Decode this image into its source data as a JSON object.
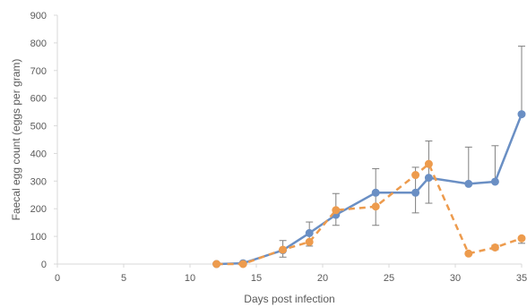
{
  "chart_data": {
    "type": "line",
    "title": "",
    "xlabel": "Days post infection",
    "ylabel": "Faecal egg count (eggs per gram)",
    "xlim": [
      0,
      35
    ],
    "ylim": [
      0,
      900
    ],
    "x_ticks": [
      0,
      5,
      10,
      15,
      20,
      25,
      30,
      35
    ],
    "y_ticks": [
      0,
      100,
      200,
      300,
      400,
      500,
      600,
      700,
      800,
      900
    ],
    "grid": false,
    "legend": "none",
    "error_bars": true,
    "series": [
      {
        "color": "#6a8fc4",
        "line_style": "solid",
        "points": [
          {
            "x": 12,
            "y": 0,
            "err_low": 0,
            "err_high": 0
          },
          {
            "x": 14,
            "y": 3,
            "err_low": 0,
            "err_high": 3
          },
          {
            "x": 17,
            "y": 50,
            "err_low": 25,
            "err_high": 85
          },
          {
            "x": 19,
            "y": 112,
            "err_low": 80,
            "err_high": 152
          },
          {
            "x": 21,
            "y": 178,
            "err_low": 140,
            "err_high": 255
          },
          {
            "x": 24,
            "y": 258,
            "err_low": 140,
            "err_high": 345
          },
          {
            "x": 27,
            "y": 258,
            "err_low": 185,
            "err_high": 350
          },
          {
            "x": 28,
            "y": 312,
            "err_low": 220,
            "err_high": 445
          },
          {
            "x": 31,
            "y": 290,
            "err_low": 290,
            "err_high": 423
          },
          {
            "x": 33,
            "y": 298,
            "err_low": 298,
            "err_high": 428
          },
          {
            "x": 35,
            "y": 542,
            "err_low": 542,
            "err_high": 788
          }
        ]
      },
      {
        "color": "#ed9b4d",
        "line_style": "dashed",
        "points": [
          {
            "x": 12,
            "y": 0,
            "err_low": 0,
            "err_high": 0
          },
          {
            "x": 14,
            "y": 0,
            "err_low": 0,
            "err_high": 0
          },
          {
            "x": 17,
            "y": 52,
            "err_low": 52,
            "err_high": 52
          },
          {
            "x": 19,
            "y": 80,
            "err_low": 65,
            "err_high": 80
          },
          {
            "x": 21,
            "y": 195,
            "err_low": 195,
            "err_high": 195
          },
          {
            "x": 24,
            "y": 208,
            "err_low": 208,
            "err_high": 208
          },
          {
            "x": 27,
            "y": 322,
            "err_low": 322,
            "err_high": 322
          },
          {
            "x": 28,
            "y": 362,
            "err_low": 362,
            "err_high": 362
          },
          {
            "x": 31,
            "y": 38,
            "err_low": 38,
            "err_high": 38
          },
          {
            "x": 33,
            "y": 60,
            "err_low": 52,
            "err_high": 68
          },
          {
            "x": 35,
            "y": 93,
            "err_low": 75,
            "err_high": 98
          }
        ]
      }
    ]
  }
}
